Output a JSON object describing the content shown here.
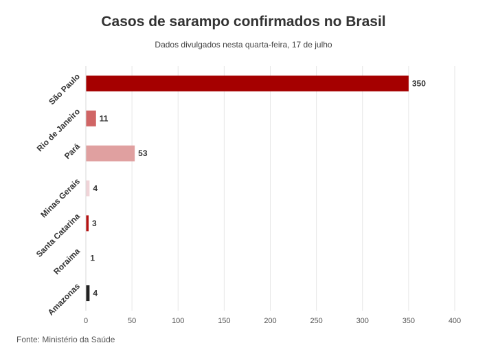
{
  "header": {
    "title": "Casos de sarampo confirmados no Brasil",
    "subtitle": "Dados divulgados nesta quarta-feira, 17 de julho"
  },
  "footer": {
    "source": "Fonte: Ministério da Saúde"
  },
  "chart_data": {
    "type": "bar",
    "orientation": "horizontal",
    "title": "Casos de sarampo confirmados no Brasil",
    "subtitle": "Dados divulgados nesta quarta-feira, 17 de julho",
    "categories": [
      "São Paulo",
      "Rio de Janeiro",
      "Pará",
      "Minas Gerais",
      "Santa Catarina",
      "Roraima",
      "Amazonas"
    ],
    "values": [
      350,
      11,
      53,
      4,
      3,
      1,
      4
    ],
    "colors": [
      "#a50000",
      "#d06565",
      "#e0a0a0",
      "#f0d4d8",
      "#b51212",
      "#ffffff",
      "#222222"
    ],
    "xlim": [
      0,
      400
    ],
    "xticks": [
      0,
      50,
      100,
      150,
      200,
      250,
      300,
      350,
      400
    ],
    "grid": true,
    "data_labels": true,
    "legend": "none"
  }
}
